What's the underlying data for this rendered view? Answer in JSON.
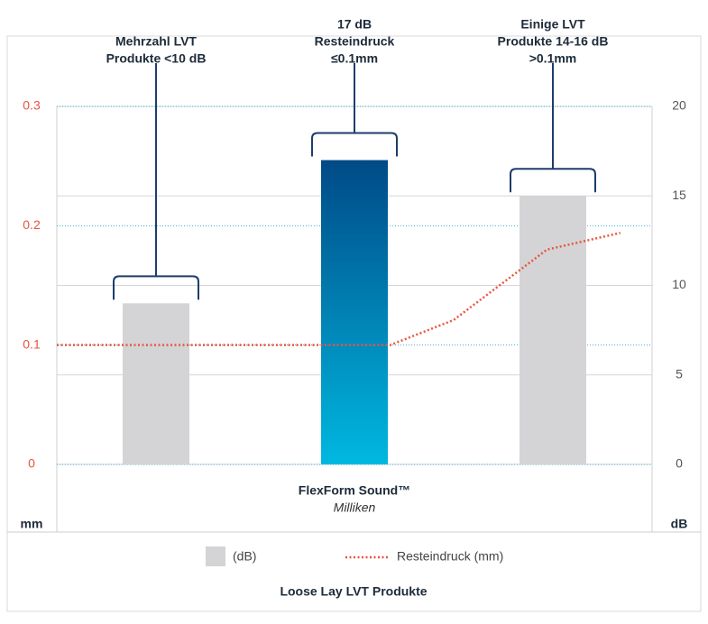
{
  "chart_data": {
    "type": "bar",
    "title": "Loose Lay LVT Produkte",
    "categories": [
      null,
      [
        "FlexForm Sound™",
        "Milliken"
      ],
      null
    ],
    "annotations": [
      [
        "Mehrzahl LVT",
        "Produkte <10 dB"
      ],
      [
        "17 dB",
        "Resteindruck",
        "≤0.1mm"
      ],
      [
        "Einige LVT",
        "Produkte 14-16 dB",
        ">0.1mm"
      ]
    ],
    "ylabel": "mm",
    "y2label": "dB",
    "ylim": [
      0,
      0.3
    ],
    "yticks": [
      0,
      0.1,
      0.2,
      0.3
    ],
    "y2lim": [
      0,
      20
    ],
    "y2ticks": [
      0,
      5,
      10,
      15,
      20
    ],
    "xlim": [
      0,
      3
    ],
    "series": [
      {
        "name": "(dB)",
        "type": "bar",
        "axis": "y2",
        "color": "#d4d4d6",
        "colors": [
          "#d4d4d6",
          [
            "#004a87",
            "#00b8e0"
          ],
          "#d4d4d6"
        ],
        "values": [
          9,
          17,
          15
        ]
      },
      {
        "name": "Resteindruck (mm)",
        "type": "line",
        "axis": "y",
        "color": "#e8553f",
        "x": [
          0,
          1.68,
          2.0,
          2.47,
          2.84
        ],
        "values": [
          0.1,
          0.1,
          0.121,
          0.18,
          0.194
        ]
      }
    ],
    "grid": true
  }
}
